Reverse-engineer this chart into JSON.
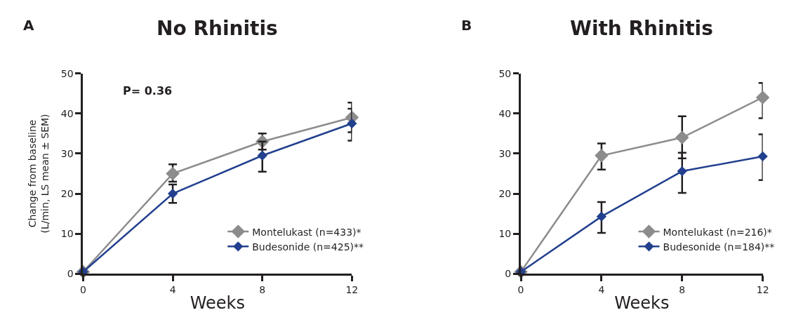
{
  "chart_data": [
    {
      "type": "line",
      "title": "No Rhinitis",
      "xlabel": "Weeks",
      "ylabel": "Change from baseline\n(L/min, LS mean ± SEM)",
      "annotations": [
        "A",
        "P= 0.36"
      ],
      "x": [
        0,
        4,
        8,
        12
      ],
      "xlim": [
        0,
        12
      ],
      "xticks": [
        0,
        4,
        8,
        12
      ],
      "ylim": [
        0,
        50
      ],
      "yticks": [
        0,
        10,
        20,
        30,
        40,
        50
      ],
      "legend": "bottom right",
      "marker": "diamond",
      "line_style": "solid",
      "series": [
        {
          "name": "Montelukast (n=433)*",
          "color": "#8c8c8c",
          "values": [
            0.5,
            25,
            33,
            39
          ],
          "errors": [
            null,
            [
              23,
              27.3
            ],
            [
              31,
              35
            ],
            [
              35.3,
              42.7
            ]
          ]
        },
        {
          "name": "Budesonide (n=425)**",
          "color": "#23408e",
          "values": [
            0.5,
            20,
            29.5,
            37.5
          ],
          "errors": [
            null,
            [
              17.7,
              22.3
            ],
            [
              25.5,
              33
            ],
            [
              33.2,
              41.2
            ]
          ]
        }
      ]
    },
    {
      "type": "line",
      "title": "With Rhinitis",
      "xlabel": "Weeks",
      "annotations": [
        "B"
      ],
      "x": [
        0,
        4,
        8,
        12
      ],
      "xlim": [
        0,
        12
      ],
      "xticks": [
        0,
        4,
        8,
        12
      ],
      "ylim": [
        0,
        50
      ],
      "yticks": [
        0,
        10,
        20,
        30,
        40,
        50
      ],
      "legend": "bottom right",
      "marker": "diamond",
      "line_style": "solid",
      "series": [
        {
          "name": "Montelukast (n=216)*",
          "color": "#8c8c8c",
          "values": [
            0.5,
            29.5,
            34,
            44
          ],
          "errors": [
            null,
            [
              26,
              32.5
            ],
            [
              28.8,
              39.3
            ],
            [
              38.8,
              47.6
            ]
          ]
        },
        {
          "name": "Budesonide (n=184)**",
          "color": "#23408e",
          "values": [
            0.5,
            14.3,
            25.6,
            29.3
          ],
          "errors": [
            null,
            [
              10.2,
              17.9
            ],
            [
              20.2,
              30.2
            ],
            [
              23.4,
              34.8
            ]
          ]
        }
      ]
    }
  ]
}
